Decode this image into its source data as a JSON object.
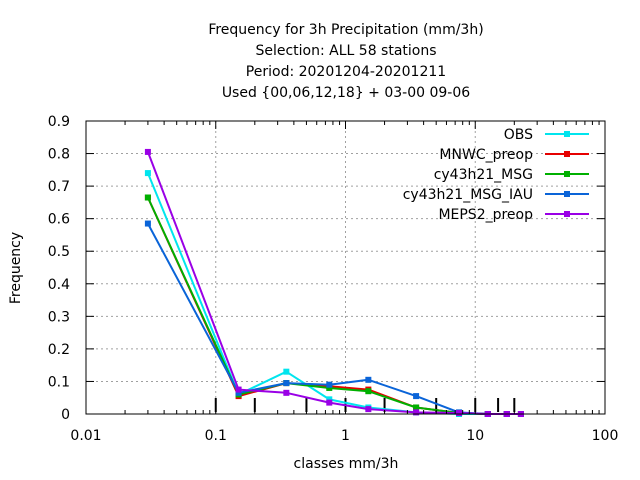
{
  "chart_data": {
    "type": "line",
    "title_lines": [
      "Frequency  for 3h Precipitation (mm/3h)",
      "Selection: ALL      58 stations",
      "Period: 20201204-20201211",
      "Used {00,06,12,18} + 03-00 09-06"
    ],
    "xlabel": "classes mm/3h",
    "ylabel": "Frequency",
    "xscale": "log",
    "xlim": [
      0.01,
      100
    ],
    "ylim": [
      0,
      0.9
    ],
    "grid": true,
    "legend_position": "top-right",
    "x_ticks": [
      {
        "value": 0.01,
        "label": "0.01"
      },
      {
        "value": 0.1,
        "label": "0.1"
      },
      {
        "value": 1,
        "label": "1"
      },
      {
        "value": 10,
        "label": "10"
      },
      {
        "value": 100,
        "label": "100"
      }
    ],
    "y_ticks": [
      {
        "value": 0,
        "label": "0"
      },
      {
        "value": 0.1,
        "label": "0.1"
      },
      {
        "value": 0.2,
        "label": "0.2"
      },
      {
        "value": 0.3,
        "label": "0.3"
      },
      {
        "value": 0.4,
        "label": "0.4"
      },
      {
        "value": 0.5,
        "label": "0.5"
      },
      {
        "value": 0.6,
        "label": "0.6"
      },
      {
        "value": 0.7,
        "label": "0.7"
      },
      {
        "value": 0.8,
        "label": "0.8"
      },
      {
        "value": 0.9,
        "label": "0.9"
      }
    ],
    "class_bounds": [
      0.1,
      0.2,
      0.5,
      1,
      2,
      5,
      10,
      15,
      20
    ],
    "x": [
      0.03,
      0.15,
      0.35,
      0.75,
      1.5,
      3.5,
      7.5,
      12.5,
      17.5,
      22.5
    ],
    "series": [
      {
        "name": "OBS",
        "color": "#00e5ee",
        "values": [
          0.74,
          0.06,
          0.13,
          0.045,
          0.02,
          0.005,
          0.0,
          0.0,
          0.0,
          0.0
        ]
      },
      {
        "name": "MNWC_preop",
        "color": "#e60000",
        "values": [
          0.665,
          0.055,
          0.095,
          0.085,
          0.075,
          0.02,
          0.003,
          0.0,
          0.0,
          0.0
        ]
      },
      {
        "name": "cy43h21_MSG",
        "color": "#00b000",
        "values": [
          0.665,
          0.06,
          0.095,
          0.08,
          0.07,
          0.02,
          0.003,
          0.0,
          0.0,
          0.0
        ]
      },
      {
        "name": "cy43h21_MSG_IAU",
        "color": "#0a64d8",
        "values": [
          0.585,
          0.065,
          0.095,
          0.09,
          0.105,
          0.055,
          0.005,
          0.0,
          0.0,
          0.0
        ]
      },
      {
        "name": "MEPS2_preop",
        "color": "#9a00e6",
        "values": [
          0.805,
          0.075,
          0.065,
          0.035,
          0.015,
          0.005,
          0.003,
          0.0,
          0.0,
          0.0
        ]
      }
    ]
  }
}
